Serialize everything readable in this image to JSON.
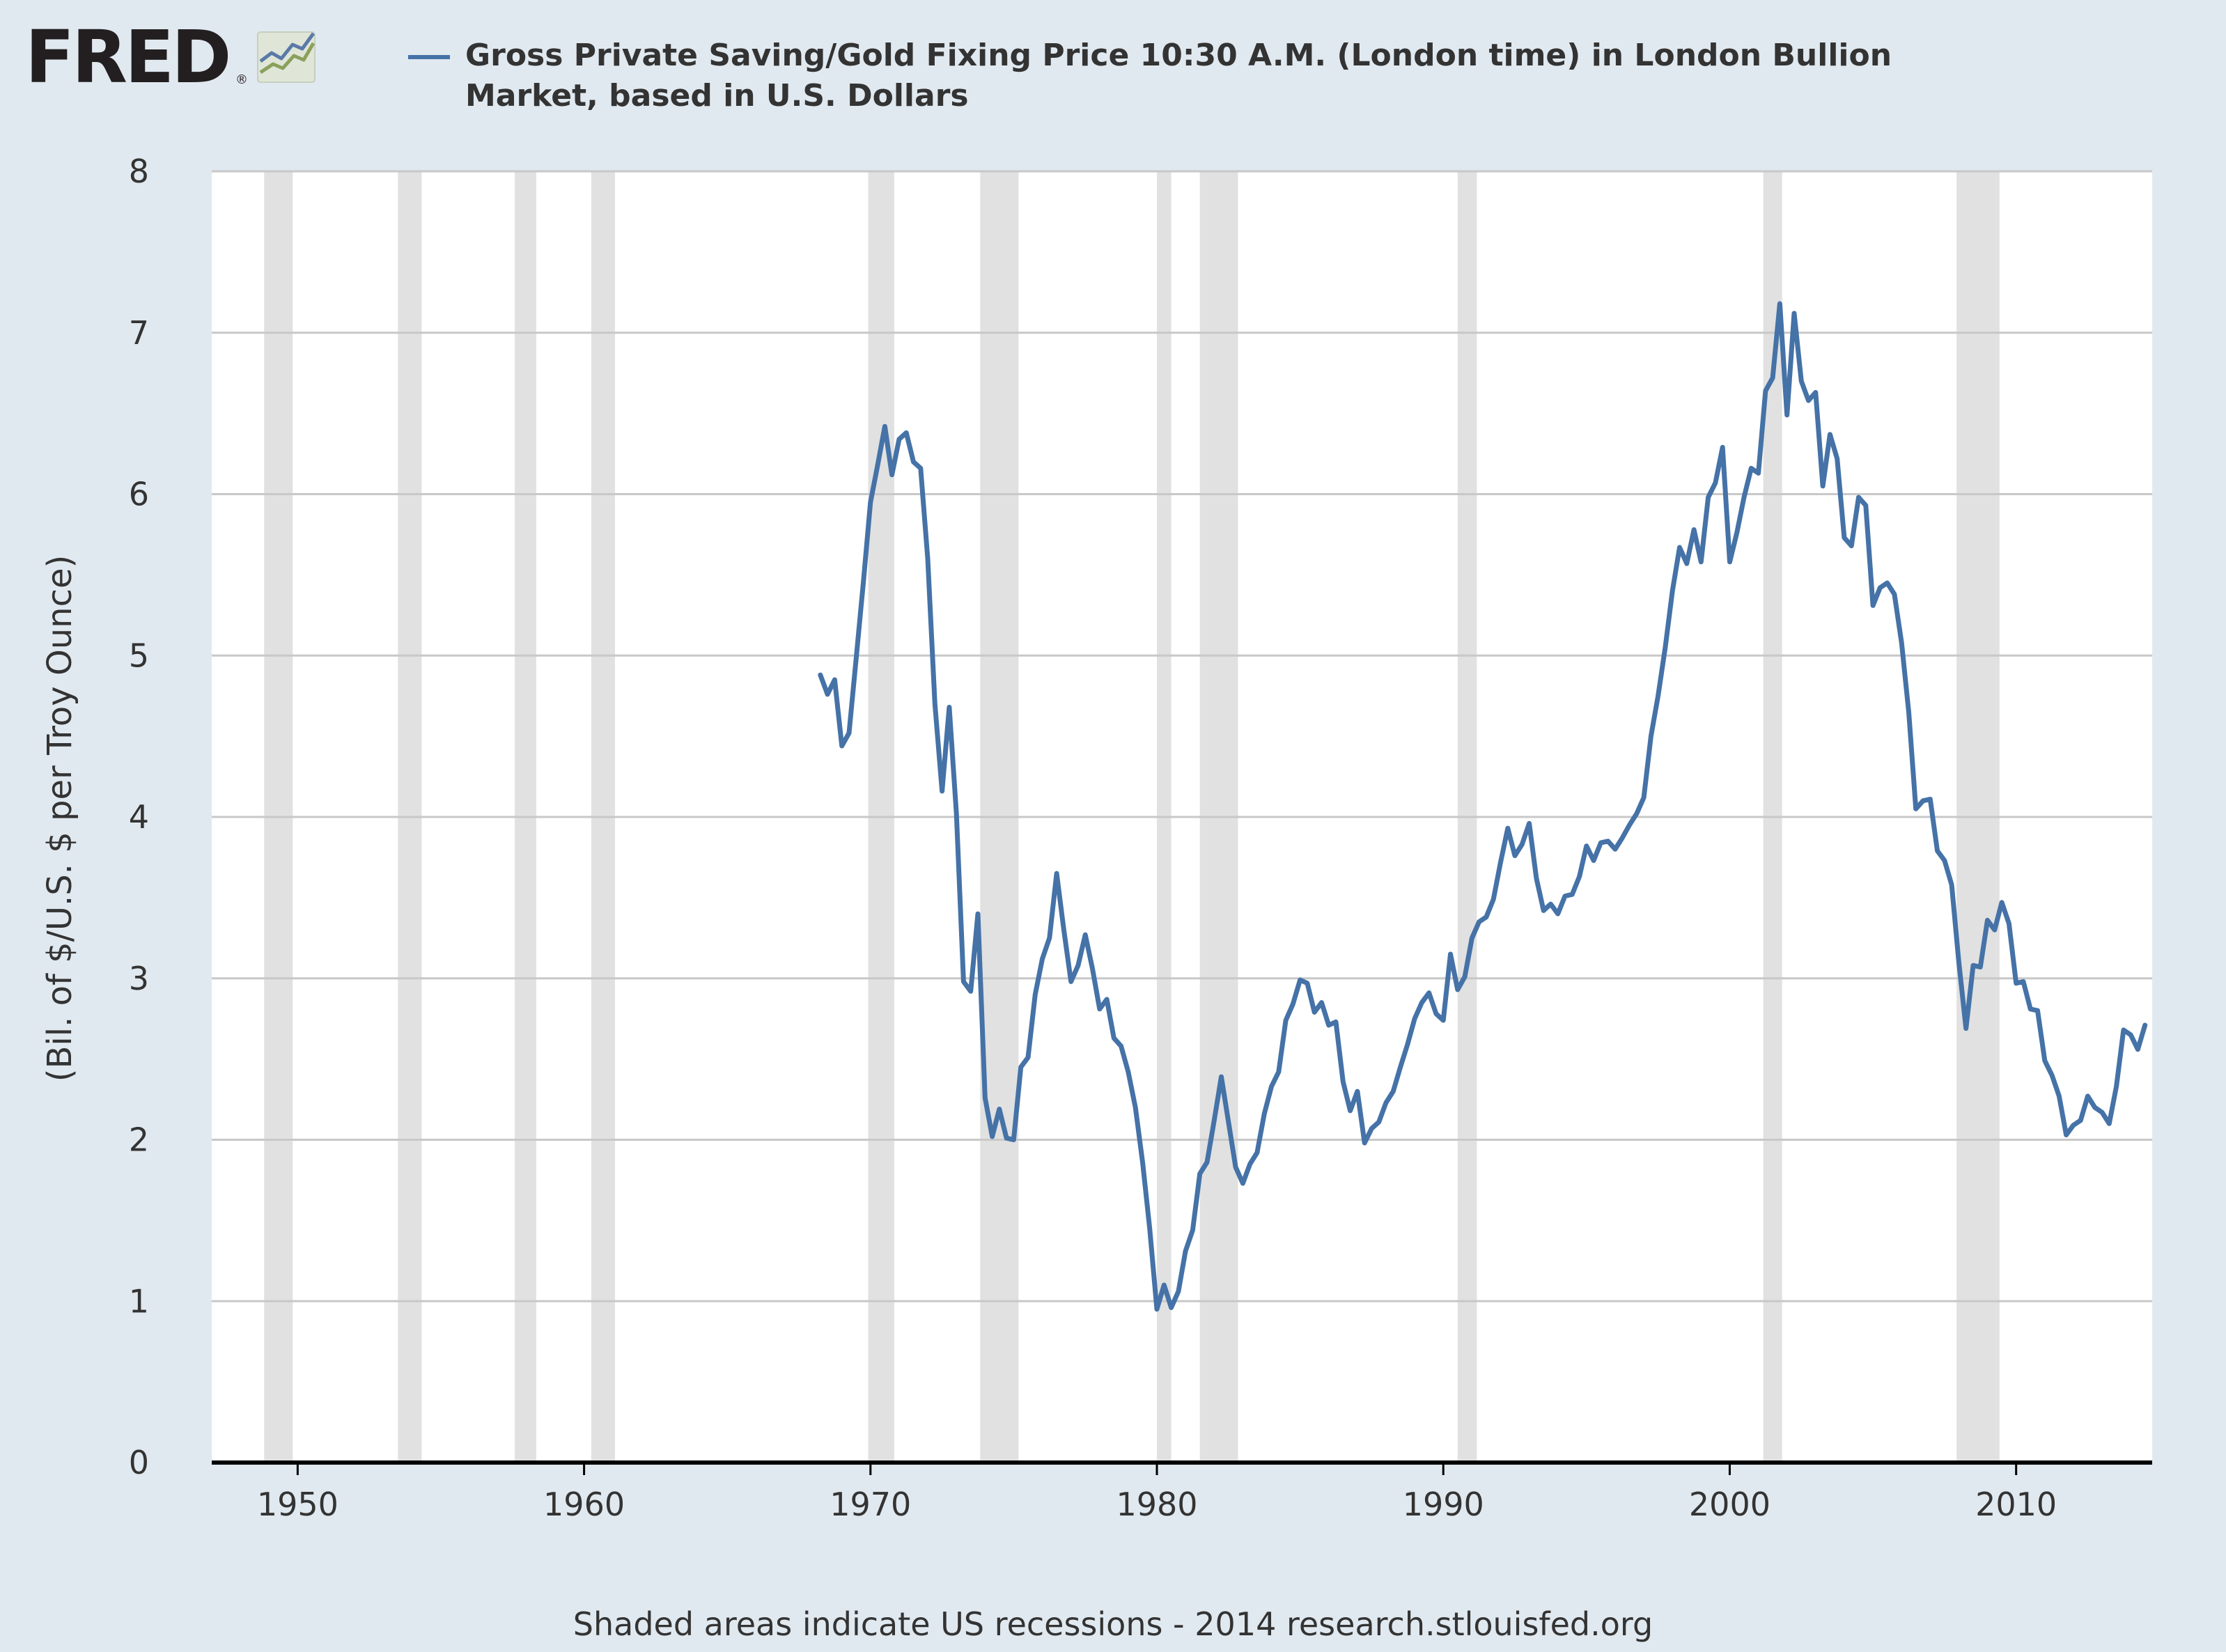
{
  "logo": {
    "text": "FRED",
    "registered": "®"
  },
  "footer": {
    "text": "Shaded areas indicate US recessions - 2014 research.stlouisfed.org"
  },
  "colors": {
    "background": "#e1e9f0",
    "plot_background": "#ffffff",
    "line": "#4572a7",
    "recession": "#e1e1e1",
    "grid": "#c8c8c8",
    "axis": "#000000",
    "text": "#333333",
    "logo": "#231f20"
  },
  "chart_data": {
    "type": "line",
    "title": "",
    "xlabel": "",
    "ylabel": "(Bil. of $/U.S. $ per Troy Ounce)",
    "ylim": [
      0,
      8
    ],
    "xlim": [
      1947.0,
      2014.75
    ],
    "yticks": [
      0,
      1,
      2,
      3,
      4,
      5,
      6,
      7,
      8
    ],
    "xticks": [
      1950,
      1960,
      1970,
      1980,
      1990,
      2000,
      2010
    ],
    "grid": true,
    "legend_position": "top",
    "series": [
      {
        "name": "Gross Private Saving/Gold Fixing Price 10:30 A.M. (London time) in London Bullion Market, based in U.S. Dollars",
        "legend_lines": [
          "Gross Private Saving/Gold Fixing Price 10:30 A.M. (London time) in London Bullion",
          "Market, based in U.S. Dollars"
        ],
        "color": "#4572a7",
        "start": 1968.25,
        "step": 0.25,
        "values": [
          4.88,
          4.76,
          4.85,
          4.44,
          4.52,
          4.98,
          5.45,
          5.95,
          6.18,
          6.42,
          6.12,
          6.34,
          6.38,
          6.2,
          6.16,
          5.6,
          4.7,
          4.16,
          4.68,
          4.02,
          2.98,
          2.92,
          3.4,
          2.26,
          2.02,
          2.19,
          2.01,
          2.0,
          2.45,
          2.51,
          2.9,
          3.12,
          3.25,
          3.65,
          3.3,
          2.98,
          3.08,
          3.27,
          3.06,
          2.81,
          2.87,
          2.63,
          2.58,
          2.42,
          2.2,
          1.86,
          1.45,
          0.95,
          1.1,
          0.96,
          1.06,
          1.31,
          1.44,
          1.79,
          1.86,
          2.12,
          2.39,
          2.11,
          1.83,
          1.73,
          1.85,
          1.92,
          2.16,
          2.33,
          2.42,
          2.74,
          2.84,
          2.99,
          2.97,
          2.79,
          2.85,
          2.71,
          2.73,
          2.36,
          2.18,
          2.3,
          1.98,
          2.07,
          2.11,
          2.23,
          2.3,
          2.45,
          2.59,
          2.75,
          2.85,
          2.91,
          2.78,
          2.74,
          3.15,
          2.93,
          3.01,
          3.25,
          3.35,
          3.38,
          3.49,
          3.72,
          3.93,
          3.76,
          3.83,
          3.96,
          3.62,
          3.42,
          3.46,
          3.4,
          3.51,
          3.52,
          3.63,
          3.82,
          3.73,
          3.84,
          3.85,
          3.8,
          3.87,
          3.95,
          4.02,
          4.12,
          4.5,
          4.75,
          5.05,
          5.4,
          5.67,
          5.57,
          5.78,
          5.58,
          5.98,
          6.07,
          6.29,
          5.58,
          5.76,
          5.98,
          6.16,
          6.13,
          6.64,
          6.72,
          7.18,
          6.49,
          7.12,
          6.7,
          6.58,
          6.63,
          6.05,
          6.37,
          6.22,
          5.73,
          5.68,
          5.98,
          5.93,
          5.31,
          5.42,
          5.45,
          5.38,
          5.08,
          4.65,
          4.05,
          4.1,
          4.11,
          3.79,
          3.73,
          3.58,
          3.1,
          2.69,
          3.08,
          3.07,
          3.36,
          3.3,
          3.47,
          3.34,
          2.97,
          2.98,
          2.81,
          2.8,
          2.49,
          2.4,
          2.27,
          2.03,
          2.09,
          2.12,
          2.27,
          2.2,
          2.17,
          2.1,
          2.33,
          2.68,
          2.65,
          2.56,
          2.71
        ]
      }
    ],
    "recessions": [
      [
        1948.83,
        1949.83
      ],
      [
        1953.5,
        1954.33
      ],
      [
        1957.58,
        1958.33
      ],
      [
        1960.25,
        1961.08
      ],
      [
        1969.92,
        1970.83
      ],
      [
        1973.83,
        1975.17
      ],
      [
        1980.0,
        1980.5
      ],
      [
        1981.5,
        1982.83
      ],
      [
        1990.5,
        1991.17
      ],
      [
        2001.17,
        2001.83
      ],
      [
        2007.92,
        2009.42
      ]
    ]
  }
}
